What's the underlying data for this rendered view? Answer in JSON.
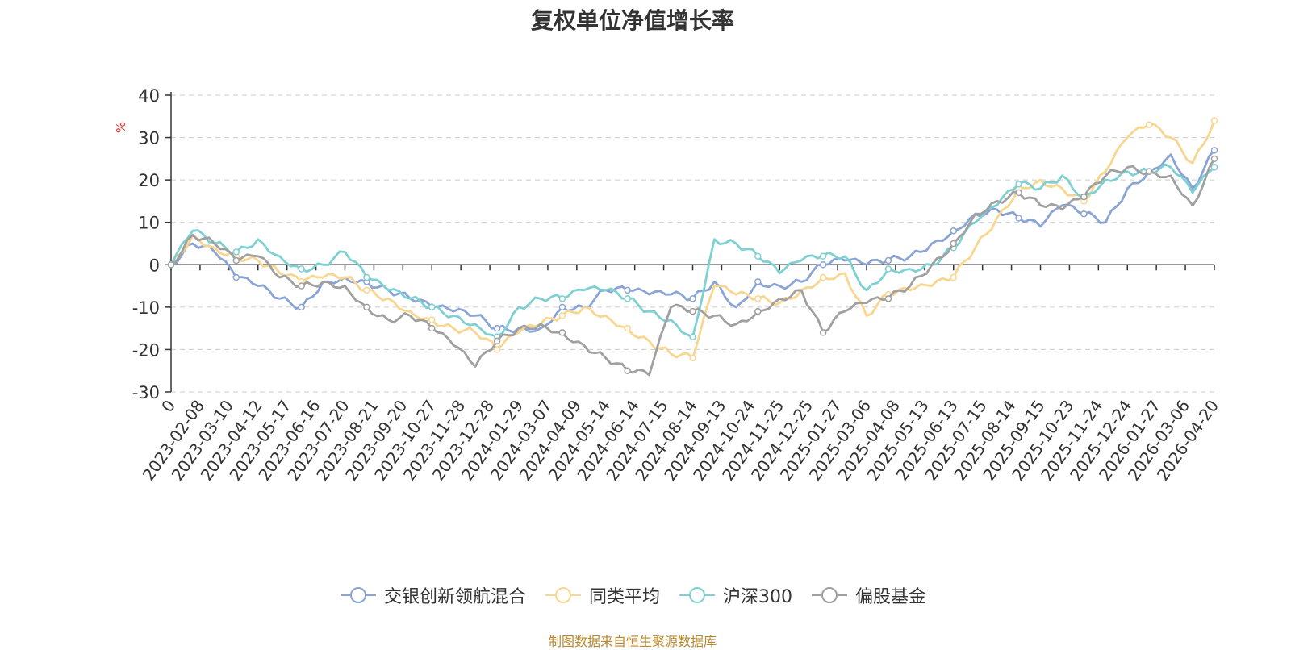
{
  "chart_data": {
    "type": "line",
    "title": "复权单位净值增长率",
    "ylabel": "%",
    "ylim": [
      -30,
      40
    ],
    "yticks": [
      -30,
      -20,
      -10,
      0,
      10,
      20,
      30,
      40
    ],
    "x_tick_labels": [
      "0",
      "2023-02-08",
      "2023-03-10",
      "2023-04-12",
      "2023-05-17",
      "2023-06-16",
      "2023-07-20",
      "2023-08-21",
      "2023-09-20",
      "2023-10-27",
      "2023-11-28",
      "2023-12-28",
      "2024-01-29",
      "2024-03-07",
      "2024-04-09",
      "2024-05-14",
      "2024-06-14",
      "2024-07-15",
      "2024-08-14",
      "2024-09-13",
      "2024-10-24",
      "2024-11-25",
      "2024-12-25",
      "2025-01-27",
      "2025-03-06",
      "2025-04-08",
      "2025-05-13",
      "2025-06-13",
      "2025-07-15",
      "2025-08-14",
      "2025-09-15",
      "2025-10-23",
      "2025-11-24",
      "2025-12-24",
      "2026-01-27",
      "2026-03-06",
      "2026-04-20"
    ],
    "series": [
      {
        "name": "交银创新领航混合",
        "color": "#8aa4d6",
        "values": [
          0,
          5,
          3,
          -3,
          -5,
          -8,
          -10,
          -4,
          -3,
          -4,
          -6,
          -8,
          -10,
          -11,
          -12,
          -15,
          -15,
          -15,
          -10,
          -10,
          -6,
          -6,
          -7,
          -7,
          -8,
          -4,
          -10,
          -4,
          -5,
          -4,
          0,
          1,
          0,
          1,
          2,
          5,
          8,
          12,
          13,
          11,
          9,
          14,
          12,
          10,
          18,
          22,
          26,
          18,
          27
        ]
      },
      {
        "name": "同类平均",
        "color": "#f9d68f",
        "values": [
          0,
          7,
          4,
          2,
          1,
          -2,
          -4,
          -3,
          -3,
          -6,
          -8,
          -11,
          -13,
          -15,
          -16,
          -20,
          -16,
          -14,
          -12,
          -10,
          -12,
          -15,
          -18,
          -21,
          -22,
          -5,
          -7,
          -8,
          -9,
          -6,
          -3,
          -2,
          -12,
          -7,
          -6,
          -5,
          -3,
          4,
          11,
          18,
          20,
          18,
          15,
          22,
          30,
          33,
          30,
          24,
          34
        ]
      },
      {
        "name": "沪深300",
        "color": "#7fd0d2",
        "values": [
          0,
          8,
          5,
          3,
          6,
          2,
          -1,
          0,
          3,
          -3,
          -6,
          -8,
          -10,
          -12,
          -14,
          -17,
          -10,
          -8,
          -8,
          -6,
          -6,
          -8,
          -11,
          -13,
          -17,
          6,
          5,
          2,
          -2,
          1,
          2,
          2,
          -6,
          -1,
          -1,
          0,
          4,
          10,
          14,
          19,
          18,
          21,
          16,
          20,
          22,
          22,
          23,
          17,
          23
        ]
      },
      {
        "name": "偏股基金",
        "color": "#a0a0a0",
        "values": [
          0,
          7,
          5,
          1,
          2,
          -3,
          -5,
          -4,
          -5,
          -10,
          -13,
          -12,
          -15,
          -19,
          -24,
          -18,
          -15,
          -14,
          -16,
          -19,
          -22,
          -25,
          -26,
          -10,
          -11,
          -12,
          -14,
          -11,
          -8,
          -6,
          -16,
          -11,
          -9,
          -8,
          -5,
          0,
          5,
          12,
          15,
          17,
          14,
          13,
          16,
          21,
          23,
          22,
          21,
          14,
          25
        ]
      }
    ]
  },
  "legend": {
    "items": [
      "交银创新领航混合",
      "同类平均",
      "沪深300",
      "偏股基金"
    ]
  },
  "footer": {
    "source_text": "制图数据来自恒生聚源数据库"
  }
}
